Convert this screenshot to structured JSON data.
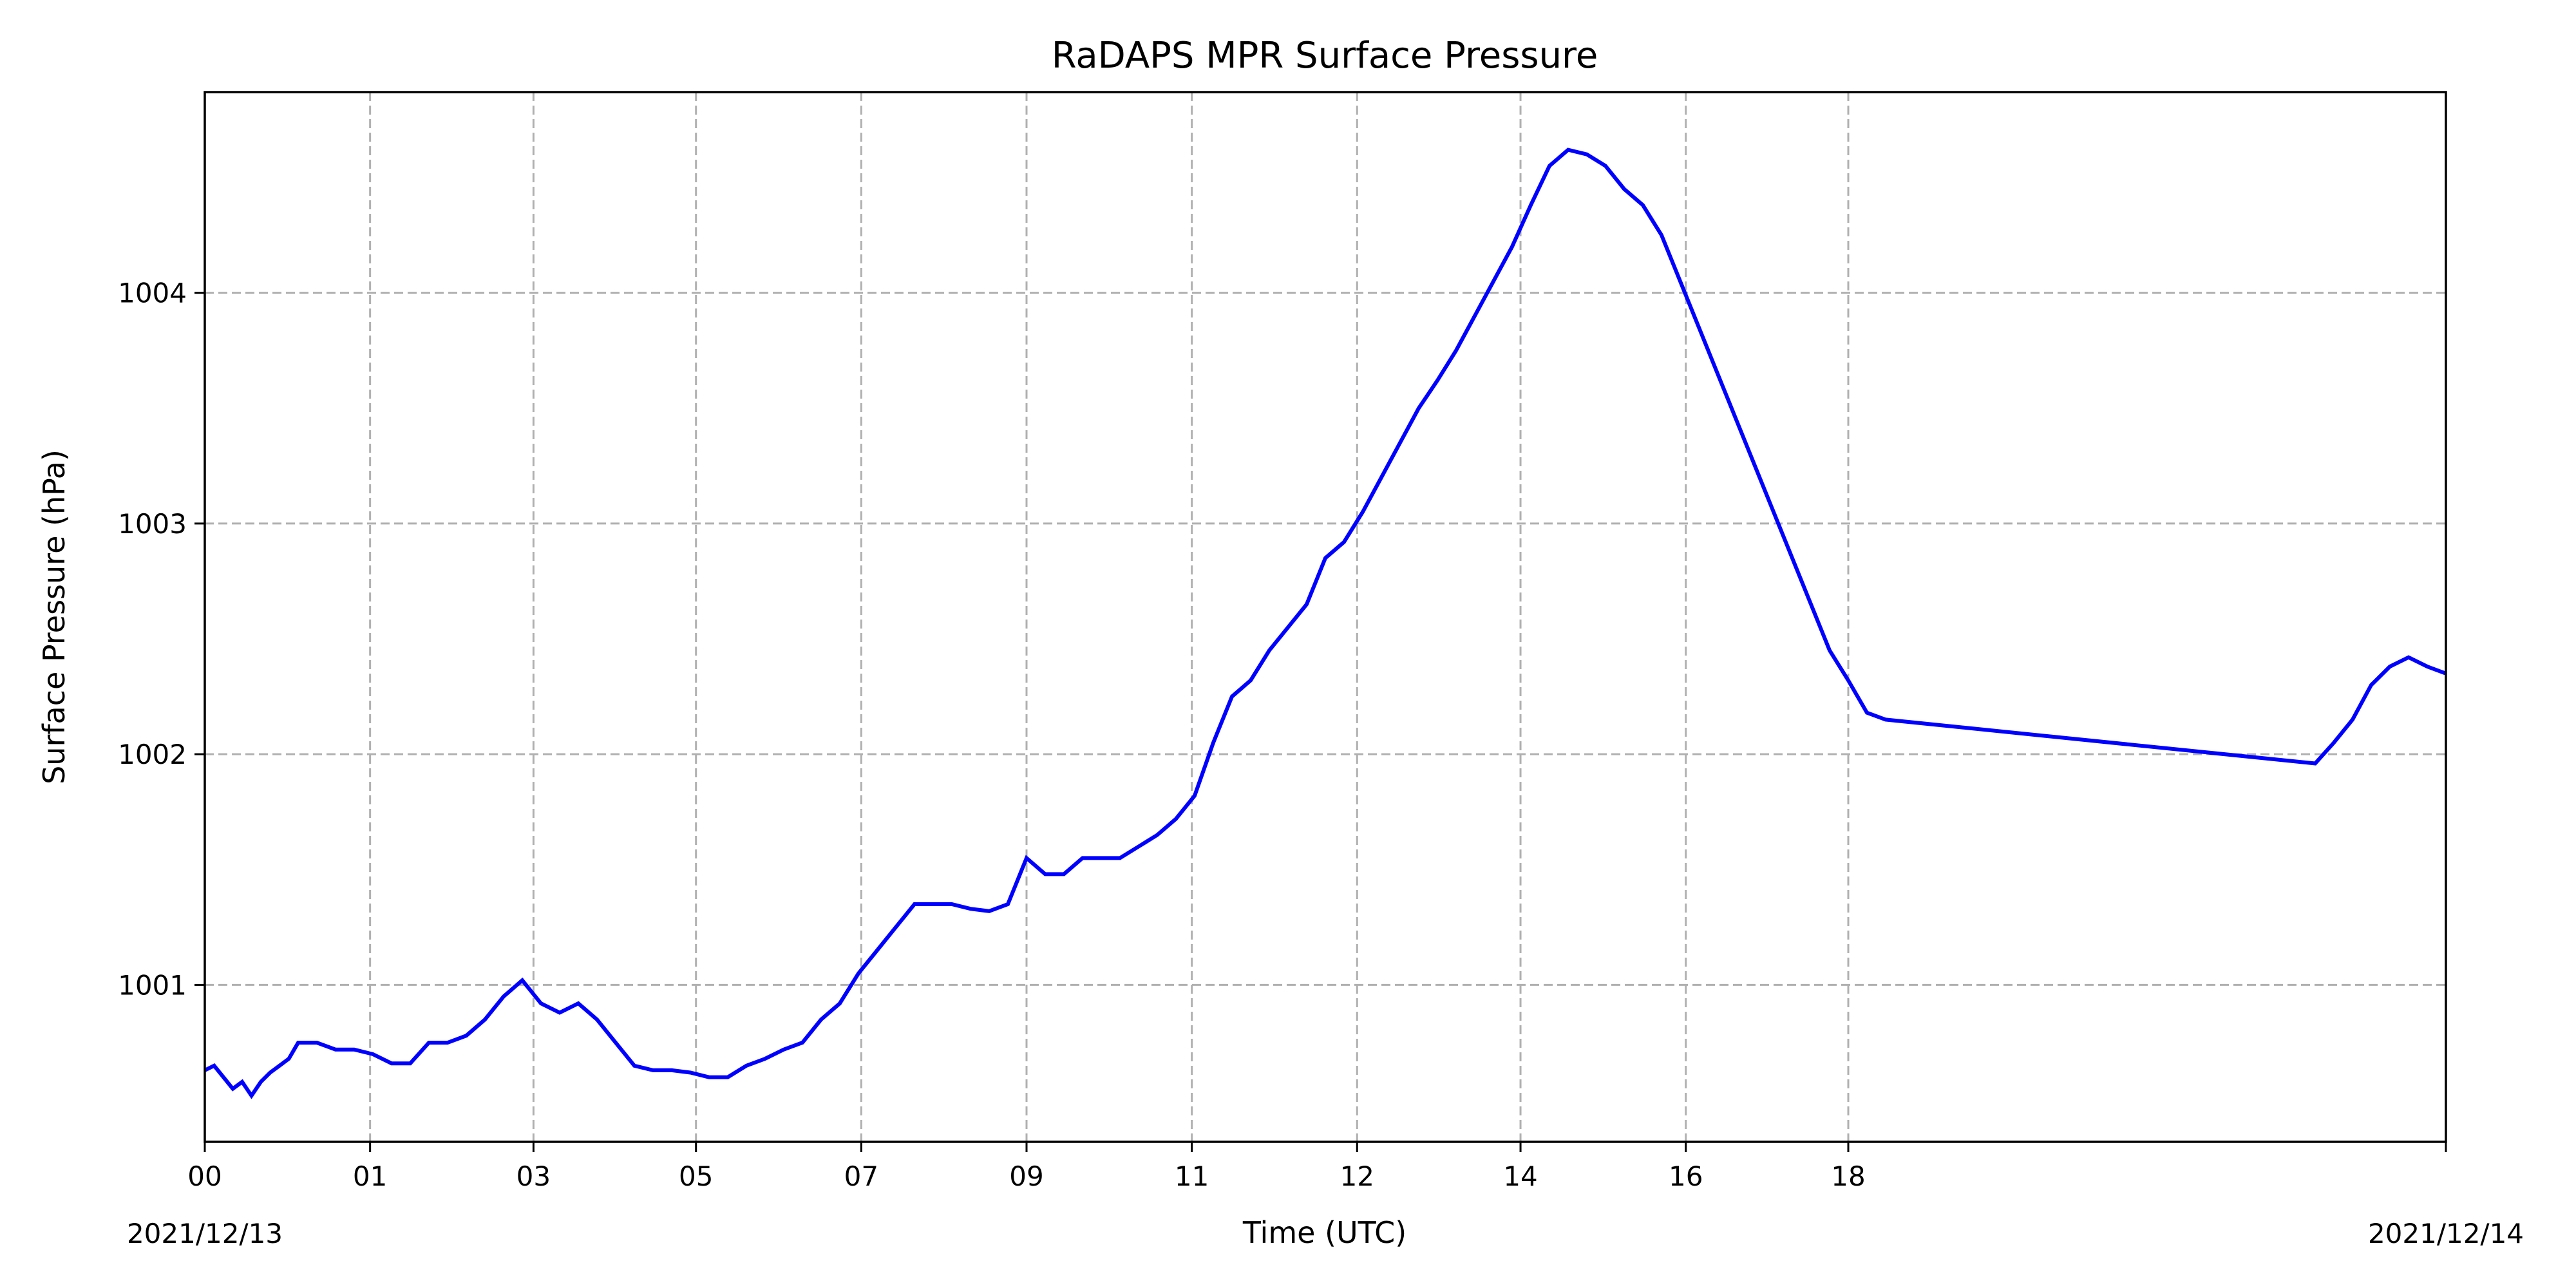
{
  "chart_data": {
    "type": "line",
    "title": "RaDAPS MPR Surface Pressure",
    "xlabel": "Time (UTC)",
    "ylabel": "Surface Pressure (hPa)",
    "xlim": [
      0,
      24
    ],
    "ylim": [
      1000.32,
      1004.87
    ],
    "grid": true,
    "date_start_label": "2021/12/13",
    "date_end_label": "2021/12/14",
    "x_ticks": [
      {
        "x": 0.0,
        "label": "00"
      },
      {
        "x": 1.77,
        "label": "01"
      },
      {
        "x": 3.52,
        "label": "03"
      },
      {
        "x": 5.26,
        "label": "05"
      },
      {
        "x": 7.03,
        "label": "07"
      },
      {
        "x": 8.8,
        "label": "09"
      },
      {
        "x": 10.57,
        "label": "11"
      },
      {
        "x": 12.34,
        "label": "12"
      },
      {
        "x": 14.09,
        "label": "14"
      },
      {
        "x": 15.86,
        "label": "16"
      },
      {
        "x": 17.6,
        "label": "18"
      },
      {
        "x": 24.0,
        "label": ""
      }
    ],
    "y_ticks": [
      {
        "y": 1001,
        "label": "1001"
      },
      {
        "y": 1002,
        "label": "1002"
      },
      {
        "y": 1003,
        "label": "1003"
      },
      {
        "y": 1004,
        "label": "1004"
      }
    ],
    "series": [
      {
        "name": "",
        "color": "#0000ff",
        "x": [
          0.0,
          0.1,
          0.2,
          0.3,
          0.4,
          0.5,
          0.6,
          0.7,
          0.8,
          0.9,
          1.0,
          1.2,
          1.4,
          1.6,
          1.8,
          2.0,
          2.2,
          2.4,
          2.6,
          2.8,
          3.0,
          3.2,
          3.4,
          3.6,
          3.8,
          4.0,
          4.2,
          4.4,
          4.6,
          4.8,
          5.0,
          5.2,
          5.4,
          5.6,
          5.8,
          6.0,
          6.2,
          6.4,
          6.6,
          6.8,
          7.0,
          7.2,
          7.4,
          7.6,
          7.8,
          8.0,
          8.2,
          8.4,
          8.6,
          8.8,
          9.0,
          9.2,
          9.4,
          9.6,
          9.8,
          10.0,
          10.2,
          10.4,
          10.6,
          10.8,
          11.0,
          11.2,
          11.4,
          11.6,
          11.8,
          12.0,
          12.2,
          12.4,
          12.6,
          12.8,
          13.0,
          13.2,
          13.4,
          13.6,
          13.8,
          14.0,
          14.2,
          14.4,
          14.6,
          14.8,
          15.0,
          15.2,
          15.4,
          15.6,
          15.8,
          16.0,
          16.2,
          16.4,
          16.6,
          16.8,
          17.0,
          17.2,
          17.4,
          17.6,
          17.8,
          18.0,
          22.6,
          22.8,
          23.0,
          23.2,
          23.4,
          23.6,
          23.8,
          24.0
        ],
        "y": [
          1000.63,
          1000.65,
          1000.6,
          1000.55,
          1000.58,
          1000.52,
          1000.58,
          1000.62,
          1000.65,
          1000.68,
          1000.75,
          1000.75,
          1000.72,
          1000.72,
          1000.7,
          1000.66,
          1000.66,
          1000.75,
          1000.75,
          1000.78,
          1000.85,
          1000.95,
          1001.02,
          1000.92,
          1000.88,
          1000.92,
          1000.85,
          1000.75,
          1000.65,
          1000.63,
          1000.63,
          1000.62,
          1000.6,
          1000.6,
          1000.65,
          1000.68,
          1000.72,
          1000.75,
          1000.85,
          1000.92,
          1001.05,
          1001.15,
          1001.25,
          1001.35,
          1001.35,
          1001.35,
          1001.33,
          1001.32,
          1001.35,
          1001.55,
          1001.48,
          1001.48,
          1001.55,
          1001.55,
          1001.55,
          1001.6,
          1001.65,
          1001.72,
          1001.82,
          1002.05,
          1002.25,
          1002.32,
          1002.45,
          1002.55,
          1002.65,
          1002.85,
          1002.92,
          1003.05,
          1003.2,
          1003.35,
          1003.5,
          1003.62,
          1003.75,
          1003.9,
          1004.05,
          1004.2,
          1004.38,
          1004.55,
          1004.62,
          1004.6,
          1004.55,
          1004.45,
          1004.38,
          1004.25,
          1004.05,
          1003.85,
          1003.65,
          1003.45,
          1003.25,
          1003.05,
          1002.85,
          1002.65,
          1002.45,
          1002.32,
          1002.18,
          1002.15,
          1001.96,
          1002.05,
          1002.15,
          1002.3,
          1002.38,
          1002.42,
          1002.38,
          1002.35
        ]
      }
    ]
  }
}
